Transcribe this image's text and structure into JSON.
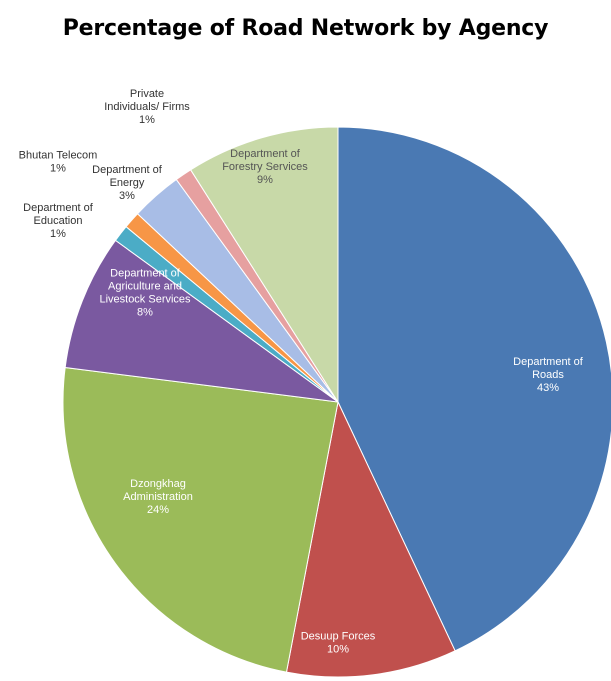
{
  "chart_data": {
    "type": "pie",
    "title": "Percentage of Road Network by Agency",
    "xlabel": "",
    "ylabel": "",
    "legend": "none",
    "slices": [
      {
        "label": "Department of Roads",
        "value": 43,
        "value_label": "43%",
        "color": "#4a79b3"
      },
      {
        "label": "Desuup Forces",
        "value": 10,
        "value_label": "10%",
        "color": "#c0504d"
      },
      {
        "label": "Dzongkhag Administration",
        "value": 24,
        "value_label": "24%",
        "color": "#9bbb59"
      },
      {
        "label": "Department of Agriculture and Livestock Services",
        "value": 8,
        "value_label": "8%",
        "color": "#7a59a0"
      },
      {
        "label": "Department of Education",
        "value": 1,
        "value_label": "1%",
        "color": "#4bacc6"
      },
      {
        "label": "Bhutan Telecom",
        "value": 1,
        "value_label": "1%",
        "color": "#f79646"
      },
      {
        "label": "Department of Energy",
        "value": 3,
        "value_label": "3%",
        "color": "#a8bde6"
      },
      {
        "label": "Private Individuals/ Firms",
        "value": 1,
        "value_label": "1%",
        "color": "#e6a0a0"
      },
      {
        "label": "Department of Forestry Services",
        "value": 9,
        "value_label": "9%",
        "color": "#c8d9a8"
      }
    ]
  }
}
